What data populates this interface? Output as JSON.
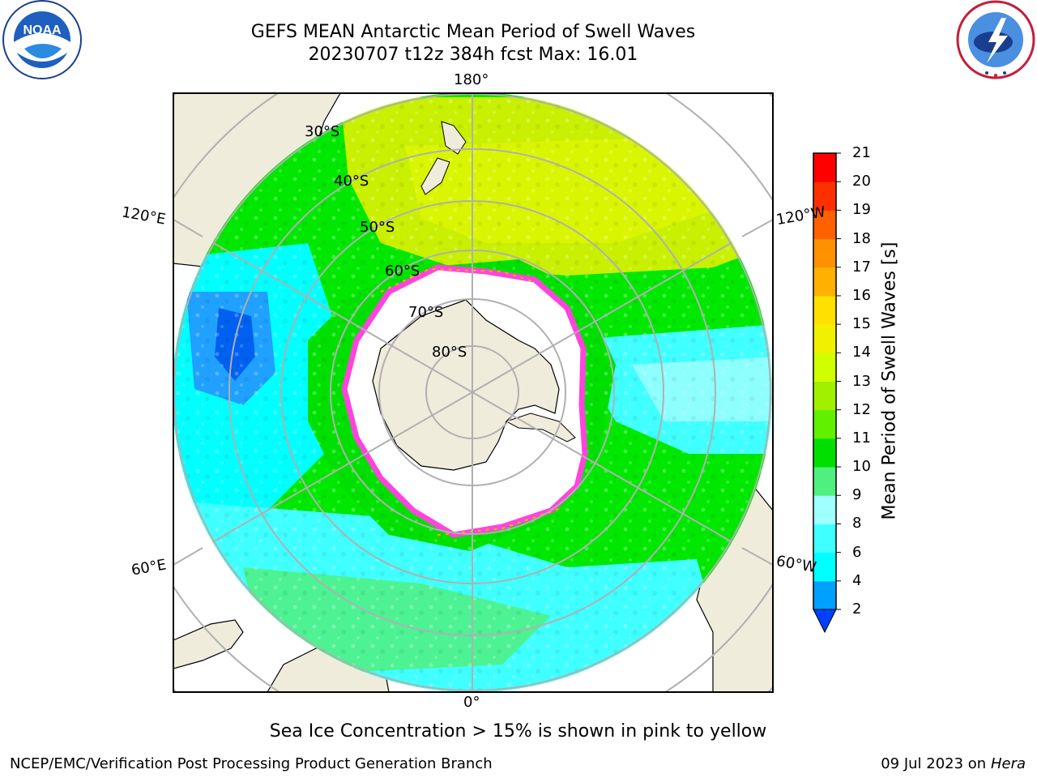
{
  "header": {
    "title_line1": "GEFS MEAN Antarctic Mean Period of Swell Waves",
    "title_line2": "20230707 t12z 384h fcst   Max: 16.01"
  },
  "logos": {
    "noaa": {
      "text": "NOAA",
      "ring_text": "NATIONAL OCEANIC AND ATMOSPHERIC ADMINISTRATION · U.S. DEPARTMENT OF COMMERCE",
      "icon": "noaa-logo"
    },
    "nws": {
      "ring_text": "NATIONAL WEATHER SERVICE",
      "icon": "nws-logo"
    }
  },
  "map": {
    "projection": "south-polar-stereographic",
    "longitude_labels": {
      "top": "180°",
      "bottom": "0°",
      "upper_left": "120°E",
      "upper_right": "120°W",
      "lower_left": "60°E",
      "lower_right": "60°W"
    },
    "latitude_labels": [
      "30°S",
      "40°S",
      "50°S",
      "60°S",
      "70°S",
      "80°S"
    ],
    "colors": {
      "land": "#efecdc",
      "ice_free_ocean_low": "#00ffff",
      "ice_edge": "#ff44dd",
      "graticule": "#b0b0b0"
    }
  },
  "colorbar": {
    "label": "Mean Period of Swell Waves [s]",
    "ticks": [
      "2",
      "4",
      "6",
      "8",
      "9",
      "10",
      "11",
      "12",
      "13",
      "14",
      "15",
      "16",
      "17",
      "18",
      "19",
      "20",
      "21"
    ],
    "colors": [
      "#0040ff",
      "#00a0ff",
      "#00ffff",
      "#40ffff",
      "#a0ffff",
      "#50f080",
      "#00e000",
      "#60f000",
      "#a0f000",
      "#d0ff00",
      "#f0f000",
      "#ffe000",
      "#ffb000",
      "#ff9000",
      "#ff6000",
      "#ff3000",
      "#ff0000"
    ],
    "extend": "min"
  },
  "note": "Sea Ice Concentration > 15% is shown in pink to yellow",
  "footer": {
    "left": "NCEP/EMC/Verification Post Processing Product Generation Branch",
    "right_date": "09 Jul 2023 on",
    "right_host": "Hera"
  }
}
